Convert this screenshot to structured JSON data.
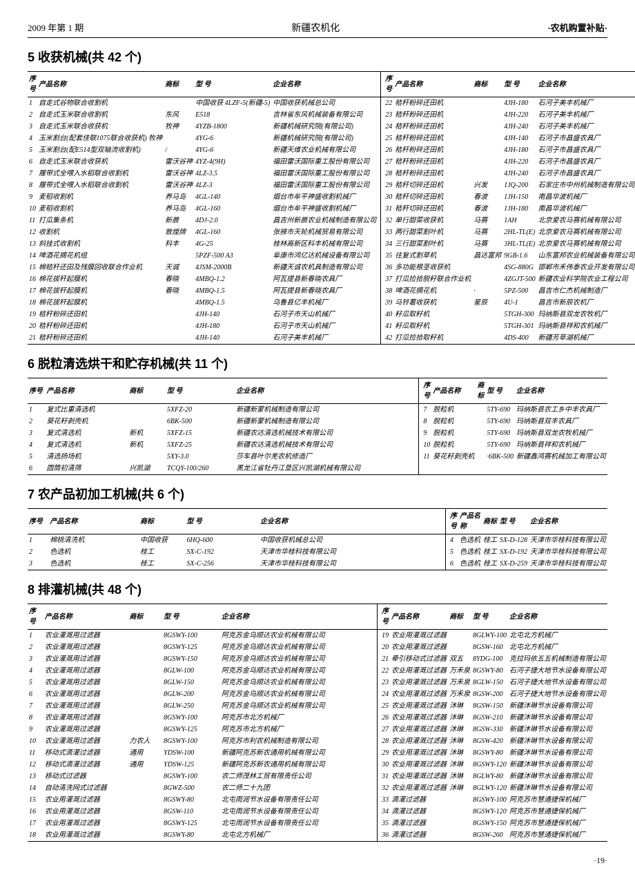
{
  "header": {
    "left": "2009 年第 1 期",
    "center": "新疆农机化",
    "right": "·农机购置补贴·"
  },
  "colHeaders": {
    "seq": "序号",
    "name": "产品名称",
    "brand": "商标",
    "model": "型 号",
    "company": "企业名称"
  },
  "sections": [
    {
      "title": "5  收获机械(共 42 个)",
      "left": [
        [
          "1",
          "自走式谷物联合收割机",
          "",
          "中国收获 4LZF-5(新疆-5)",
          "中国收获机械总公司"
        ],
        [
          "2",
          "自走式玉米联合收割机",
          "东风",
          "E518",
          "吉林省东风机械装备有限公司"
        ],
        [
          "3",
          "自走式玉米联合收获机",
          "牧神",
          "4YZB-1800",
          "新疆机械研究院(有限公司)"
        ],
        [
          "4",
          "玉米割台(配套佳联1075联合收获机) 牧神",
          "",
          "4YG-6",
          "新疆机械研究院(有限公司)"
        ],
        [
          "5",
          "玉米割台(配E514型双轴流收割机)",
          "/",
          "4YG-6",
          "新疆天维农业机械有限公司"
        ],
        [
          "6",
          "自走式玉米联合收获机",
          "雷沃谷神",
          "4YZ-4(9H)",
          "福田雷沃国际重工股份有限公司"
        ],
        [
          "7",
          "履带式全喂入水稻联合收割机",
          "雷沃谷神",
          "4LZ-3.5",
          "福田雷沃国际重工股份有限公司"
        ],
        [
          "8",
          "履带式全喂入水稻联合收割机",
          "雷沃谷神",
          "4LZ-3",
          "福田雷沃国际重工股份有限公司"
        ],
        [
          "9",
          "麦稻收割机",
          "养马岛",
          "4GL-140",
          "烟台市牟平神盛收割机械厂"
        ],
        [
          "10",
          "麦稻收割机",
          "养马岛",
          "4GL-160",
          "烟台市牟平神盛收割机械厂"
        ],
        [
          "11",
          "打瓜集条机",
          "新晨",
          "4DJ-2.0",
          "昌吉州新晨农业机械制造有限公司"
        ],
        [
          "12",
          "收割机",
          "敦煌牌",
          "4GL-160",
          "张掖市天轮机械贸易有限公司"
        ],
        [
          "13",
          "斜挂式收割机",
          "科丰",
          "4G-25",
          "桂林高新区科丰机械有限公司"
        ],
        [
          "14",
          "啤酒花摘花机组",
          "",
          "5PZF-500 A3",
          "阜康市鸿亿达机械设备有限公司"
        ],
        [
          "15",
          "棉秸秆还田及残膜回收联合作业机",
          "天诚",
          "4JSM-2000B",
          "新疆天诚农机具制造有限公司"
        ],
        [
          "16",
          "棉花拔秆起膜机",
          "春晓",
          "4MBQ-1.2",
          "阿瓦提县新春晓农具厂"
        ],
        [
          "17",
          "棉花拔秆起膜机",
          "春晓",
          "4MBQ-1.5",
          "阿瓦提县新春晓农具厂"
        ],
        [
          "18",
          "棉花拔秆起膜机",
          "",
          "4MBQ-1.5",
          "乌鲁县亿丰机械厂"
        ],
        [
          "19",
          "秸秆粉碎还田机",
          "",
          "4JH-140",
          "石河子市天山机械厂"
        ],
        [
          "20",
          "秸秆粉碎还田机",
          "",
          "4JH-180",
          "石河子市天山机械厂"
        ],
        [
          "21",
          "秸秆粉碎还田机",
          "",
          "4JH-140",
          "石河子美丰机械厂"
        ]
      ],
      "right": [
        [
          "22",
          "秸秆粉碎还田机",
          "",
          "4JH-180",
          "石河子美丰机械厂"
        ],
        [
          "23",
          "秸秆粉碎还田机",
          "",
          "4JH-220",
          "石河子美丰机械厂"
        ],
        [
          "24",
          "秸秆粉碎还田机",
          "",
          "4JH-240",
          "石河子美丰机械厂"
        ],
        [
          "25",
          "秸秆粉碎还田机",
          "",
          "4JH-140",
          "石河子市昌盛农具厂"
        ],
        [
          "26",
          "秸秆粉碎还田机",
          "",
          "4JH-180",
          "石河子市昌盛农具厂"
        ],
        [
          "27",
          "秸秆粉碎还田机",
          "",
          "4JH-220",
          "石河子市昌盛农具厂"
        ],
        [
          "28",
          "秸秆粉碎还田机",
          "",
          "4JH-240",
          "石河子市昌盛农具厂"
        ],
        [
          "29",
          "秸秆切碎还田机",
          "兴发",
          "1JQ-200",
          "石家庄市中州机械制造有限公司"
        ],
        [
          "30",
          "秸秆切碎还田机",
          "春波",
          "1JH-150",
          "南昌华波机械厂"
        ],
        [
          "31",
          "秸秆切碎还田机",
          "春波",
          "1JH-180",
          "南昌华波机械厂"
        ],
        [
          "32",
          "单行甜菜收获机",
          "马赛",
          "1AH",
          "北京爱农马赛机械有限公司"
        ],
        [
          "33",
          "两行甜菜割叶机",
          "马赛",
          "2HL-TL(E)",
          "北京爱农马赛机械有限公司"
        ],
        [
          "34",
          "三行甜菜割叶机",
          "马赛",
          "3HL-TL(E)",
          "北京爱农马赛机械有限公司"
        ],
        [
          "35",
          "往复式割草机",
          "昌达富邦",
          "9GB-1.6",
          "山东富邦农业机械装备有限公司"
        ],
        [
          "36",
          "多功能根茎收获机",
          "",
          "4SG-880G",
          "邯郸市禾伟泰农业开发有限公司"
        ],
        [
          "37",
          "打瓜捡拾脱籽联合作业机",
          "",
          "4ZGJT-500",
          "新疆农业科学院农业工程公司"
        ],
        [
          "38",
          "啤酒花摘花机",
          "·",
          "5PZ-500",
          "昌吉市仁杰机械制造厂"
        ],
        [
          "39",
          "马铃薯收获机",
          "星辰",
          "4U-1",
          "昌吉市新辰农机厂"
        ],
        [
          "40",
          "籽瓜取籽机",
          "",
          "5TGH-300",
          "玛纳斯县双龙农牧机厂"
        ],
        [
          "41",
          "籽瓜取籽机",
          "",
          "5TGH-301",
          "玛纳斯县祥和农机械厂"
        ],
        [
          "42",
          "打瓜捡拾取籽机",
          "",
          "4DS-400",
          "新疆芳草湖机械厂"
        ]
      ]
    },
    {
      "title": "6  脱粒清选烘干和贮存机械(共 11 个)",
      "left": [
        [
          "1",
          "复式比重清选机",
          "",
          "5XFZ-20",
          "新疆新蒙机械制造有限公司"
        ],
        [
          "2",
          "葵花籽剥壳机",
          "",
          "6BK-500",
          "新疆新蒙机械制造有限公司"
        ],
        [
          "3",
          "复式清选机",
          "新机",
          "5XFZ-15",
          "新疆农达清选机械技术有限公司"
        ],
        [
          "4",
          "复式清选机",
          "新机",
          "5XFZ-25",
          "新疆农达清选机械技术有限公司"
        ],
        [
          "5",
          "清选扬场机",
          "",
          "5XY-3.0",
          "莎车县叶尔羌农机修造厂"
        ],
        [
          "6",
          "圆筒初清筛",
          "兴凯湖",
          "TCQY-100/260",
          "黑龙江省牡丹江垦区兴凯湖机械有限公司"
        ]
      ],
      "right": [
        [
          "7",
          "脱粒机",
          "",
          "5TY-690",
          "玛纳斯县农工乡中丰农具厂"
        ],
        [
          "8",
          "脱粒机",
          "",
          "5TY-690",
          "玛纳斯县双丰农具厂"
        ],
        [
          "9",
          "脱粒机",
          "",
          "5TY-690",
          "玛纳斯县双龙农牧机械厂"
        ],
        [
          "10",
          "脱粒机",
          "",
          "5TY-690",
          "玛纳斯县祥和农机械厂"
        ],
        [
          "11",
          "葵花籽剥壳机",
          "",
          "·6BK-500",
          "新疆鑫鸿赛机械加工有限公司"
        ]
      ]
    },
    {
      "title": "7  农产品初加工机械(共 6 个)",
      "left": [
        [
          "1",
          "棉桃清洗机",
          "中国收获",
          "6HQ-600",
          "中国收获机械总公司"
        ],
        [
          "2",
          "色选机",
          "桂工",
          "SX-C-192",
          "天津市华桂科技有限公司"
        ],
        [
          "3",
          "色选机",
          "桂工",
          "SX-C-256",
          "天津市华桂科技有限公司"
        ]
      ],
      "right": [
        [
          "4",
          "色选机",
          "桂工",
          "SX-D-128",
          "天津市华桂科技有限公司"
        ],
        [
          "5",
          "色选机",
          "桂工",
          "SX-D-192",
          "天津市华桂科技有限公司"
        ],
        [
          "6",
          "色选机",
          "桂工",
          "SX-D-259",
          "天津市华桂科技有限公司"
        ]
      ]
    },
    {
      "title": "8  排灌机械(共 48 个)",
      "left": [
        [
          "1",
          "农业灌溉用过滤器",
          "",
          "8GSWY-100",
          "阿克苏金乌顺达农业机械有限公司"
        ],
        [
          "2",
          "农业灌溉用过滤器",
          "",
          "8GSWY-125",
          "阿克苏金乌顺达农业机械有限公司"
        ],
        [
          "3",
          "农业灌溉用过滤器",
          "",
          "8GSWY-150",
          "阿克苏金乌顺达农业机械有限公司"
        ],
        [
          "4",
          "农业灌溉用过滤器",
          "",
          "8GLW-100",
          "阿克苏金乌顺达农业机械有限公司"
        ],
        [
          "5",
          "农业灌溉用过滤器",
          "",
          "8GLW-150",
          "阿克苏金乌顺达农业机械有限公司"
        ],
        [
          "6",
          "农业灌溉用过滤器",
          "",
          "8GLW-200",
          "阿克苏金乌顺达农业机械有限公司"
        ],
        [
          "7",
          "农业灌溉用过滤器",
          "",
          "8GLW-250",
          "阿克苏金乌顺达农业机械有限公司"
        ],
        [
          "8",
          "农业灌溉用过滤器",
          "",
          "8GSWY-100",
          "阿克苏市北方机械厂"
        ],
        [
          "9",
          "农业灌溉用过滤器",
          "",
          "8GSWY-125",
          "阿克苏市北方机械厂"
        ],
        [
          "10",
          "农业灌溉用过滤器",
          "力农人",
          "8GSWY-100",
          "阿克苏市利农机械制造有限公司"
        ],
        [
          "11",
          "移动式滴灌过滤器",
          "通用",
          "YDSW-100",
          "新疆阿克苏新农通用机械有限公司"
        ],
        [
          "12",
          "移动式滴灌过滤器",
          "通用",
          "YDSW-125",
          "新疆阿克苏新农通用机械有限公司"
        ],
        [
          "13",
          "移动式过滤器",
          "",
          "8GSWY-100",
          "农二师茂林工贸有限责任公司"
        ],
        [
          "14",
          "自动清洗网式过滤器",
          "",
          "8GWZ-500",
          "农二师二十九团"
        ],
        [
          "15",
          "农业用灌溉过滤器",
          "",
          "8GSWY-80",
          "北屯雨润节水设备有限责任公司"
        ],
        [
          "16",
          "农业用灌溉过滤器",
          "",
          "8GSW-110",
          "北屯雨润节水设备有限责任公司"
        ],
        [
          "17",
          "农业用灌溉过滤器",
          "",
          "8GSWY-125",
          "北屯雨润节水设备有限责任公司"
        ],
        [
          "18",
          "农业用灌溉过滤器",
          "",
          "8GSWY-80",
          "北屯北方机械厂"
        ]
      ],
      "right": [
        [
          "19",
          "农业用灌溉过滤器",
          "",
          "8GLWY-100",
          "北屯北方机械厂"
        ],
        [
          "20",
          "农业用灌溉过滤器",
          "",
          "8GSW-160",
          "北屯北方机械厂"
        ],
        [
          "21",
          "牵引移动式过滤器",
          "双五",
          "8YDG-100",
          "克拉玛依五五机械制造有限公司"
        ],
        [
          "22",
          "农业用灌溉过滤器",
          "万禾泉",
          "8GSWY-80",
          "石河子捷大地节水设备有限公司"
        ],
        [
          "23",
          "农业用灌溉过滤器",
          "万禾泉",
          "8GLW-150",
          "石河子捷大地节水设备有限公司"
        ],
        [
          "24",
          "农业用灌溉过滤器",
          "万禾泉",
          "8GSW-200",
          "石河子捷大地节水设备有限公司"
        ],
        [
          "25",
          "农业用灌溉过滤器",
          "沐琳",
          "8GSW-150",
          "新疆沐琳节水设备有限公司"
        ],
        [
          "26",
          "农业用灌溉过滤器",
          "沐琳",
          "8GSW-210",
          "新疆沐琳节水设备有限公司"
        ],
        [
          "27",
          "农业用灌溉过滤器",
          "沐琳",
          "8GSW-330",
          "新疆沐琳节水设备有限公司"
        ],
        [
          "28",
          "农业用灌溉过滤器",
          "沐琳",
          "8GSW-420",
          "新疆沐琳节水设备有限公司"
        ],
        [
          "29",
          "农业用灌溉过滤器",
          "沐琳",
          "8GSWY-80",
          "新疆沐琳节水设备有限公司"
        ],
        [
          "30",
          "农业用灌溉过滤器",
          "沐琳",
          "8GSWY-120",
          "新疆沐琳节水设备有限公司"
        ],
        [
          "31",
          "农业用灌溉过滤器",
          "沐琳",
          "8GLWY-80",
          "新疆沐琳节水设备有限公司"
        ],
        [
          "32",
          "农业用灌溉过滤器",
          "沐琳",
          "8GLWY-120",
          "新疆沐琳节水设备有限公司"
        ],
        [
          "33",
          "滴灌过滤器",
          "",
          "8GSWY-100",
          "阿克苏市慧通捷保机械厂"
        ],
        [
          "34",
          "滴灌过滤器",
          "",
          "8GSWY-120",
          "阿克苏市慧通捷保机械厂"
        ],
        [
          "35",
          "滴灌过滤器",
          "",
          "8GSWY-150",
          "阿克苏市慧通捷保机械厂"
        ],
        [
          "36",
          "滴灌过滤器",
          "",
          "8GSW-260",
          "阿克苏市慧通捷保机械厂"
        ]
      ]
    }
  ],
  "pageNum": "·19·"
}
